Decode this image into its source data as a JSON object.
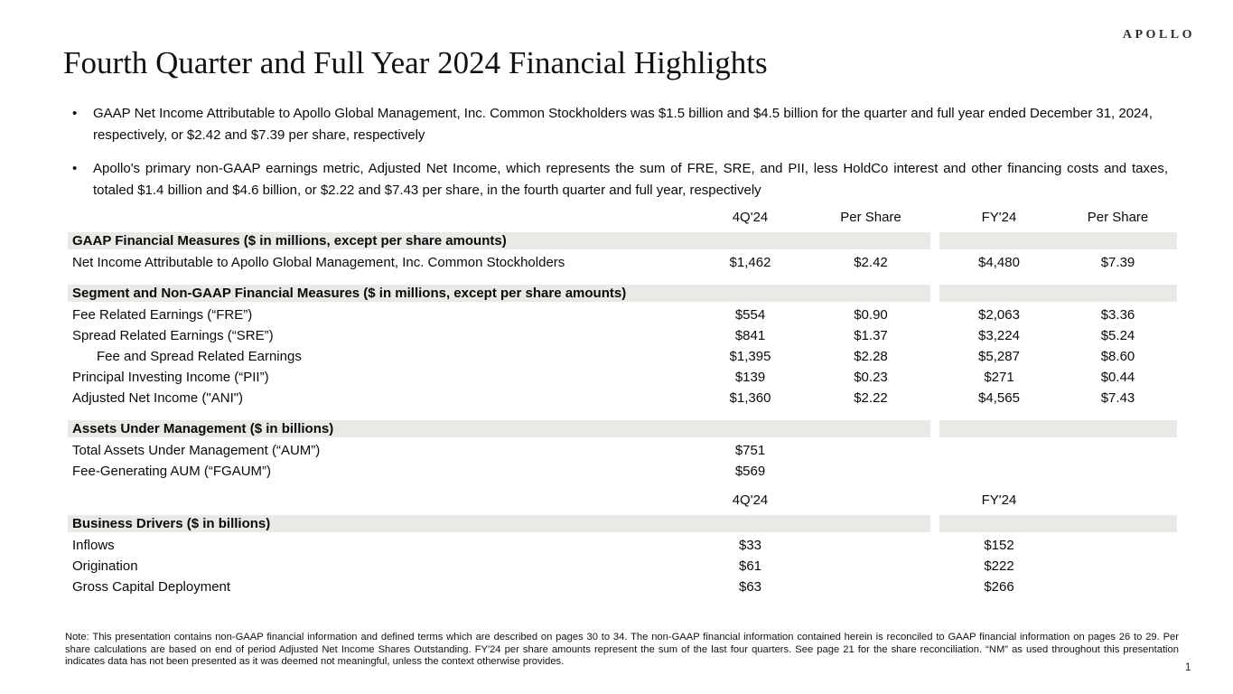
{
  "logo": "APOLLO",
  "title": "Fourth Quarter and Full Year 2024 Financial Highlights",
  "bullet_marker": "•",
  "bullets": [
    {
      "text": "GAAP Net Income Attributable to Apollo Global Management, Inc. Common Stockholders was $1.5 billion and $4.5 billion for the quarter and full year ended December 31, 2024, respectively, or $2.42 and $7.39 per share, respectively"
    },
    {
      "text": "Apollo's primary non-GAAP earnings metric, Adjusted Net Income, which represents the sum of FRE, SRE, and PII, less HoldCo interest and other financing costs and taxes, totaled $1.4 billion and $4.6 billion, or $2.22 and $7.43 per share, in the fourth quarter and full year, respectively"
    }
  ],
  "table": {
    "columns_header_top": [
      "4Q'24",
      "Per Share",
      "FY'24",
      "Per Share"
    ],
    "sections": [
      {
        "header": "GAAP Financial Measures ($ in millions, except per share amounts)",
        "rows": [
          {
            "label": "Net Income Attributable to Apollo Global Management, Inc. Common Stockholders",
            "values": [
              "$1,462",
              "$2.42",
              "$4,480",
              "$7.39"
            ]
          }
        ]
      },
      {
        "header": "Segment and Non-GAAP Financial Measures ($ in millions, except per share amounts)",
        "rows": [
          {
            "label": "Fee Related Earnings (“FRE”)",
            "values": [
              "$554",
              "$0.90",
              "$2,063",
              "$3.36"
            ]
          },
          {
            "label": "Spread Related Earnings (“SRE”)",
            "values": [
              "$841",
              "$1.37",
              "$3,224",
              "$5.24"
            ]
          },
          {
            "label": "Fee and Spread Related Earnings",
            "indent": true,
            "values": [
              "$1,395",
              "$2.28",
              "$5,287",
              "$8.60"
            ]
          },
          {
            "label": "Principal Investing Income (“PII”)",
            "values": [
              "$139",
              "$0.23",
              "$271",
              "$0.44"
            ]
          },
          {
            "label": "Adjusted Net Income (\"ANI\")",
            "values": [
              "$1,360",
              "$2.22",
              "$4,565",
              "$7.43"
            ]
          }
        ]
      },
      {
        "header": "Assets Under Management ($ in billions)",
        "rows": [
          {
            "label": "Total Assets Under Management (“AUM”)",
            "values": [
              "$751",
              "",
              "",
              ""
            ]
          },
          {
            "label": "Fee-Generating AUM (“FGAUM”)",
            "values": [
              "$569",
              "",
              "",
              ""
            ]
          }
        ]
      },
      {
        "header": "Business Drivers ($ in billions)",
        "header_above": [
          "4Q'24",
          "",
          "FY'24",
          ""
        ],
        "rows": [
          {
            "label": "Inflows",
            "values": [
              "$33",
              "",
              "$152",
              ""
            ]
          },
          {
            "label": "Origination",
            "values": [
              "$61",
              "",
              "$222",
              ""
            ]
          },
          {
            "label": "Gross Capital Deployment",
            "values": [
              "$63",
              "",
              "$266",
              ""
            ]
          }
        ]
      }
    ]
  },
  "footnote": "Note: This presentation contains non-GAAP financial information and defined terms which are described on pages 30 to 34. The non-GAAP financial information contained herein is reconciled to GAAP financial information on pages 26 to 29. Per share calculations are based on end of period Adjusted Net Income Shares Outstanding. FY'24 per share amounts represent the sum of the last four quarters. See page 21 for the share reconciliation. “NM” as used throughout this presentation indicates data has not been presented as it was deemed not meaningful, unless the context otherwise provides.",
  "page_number": "1"
}
